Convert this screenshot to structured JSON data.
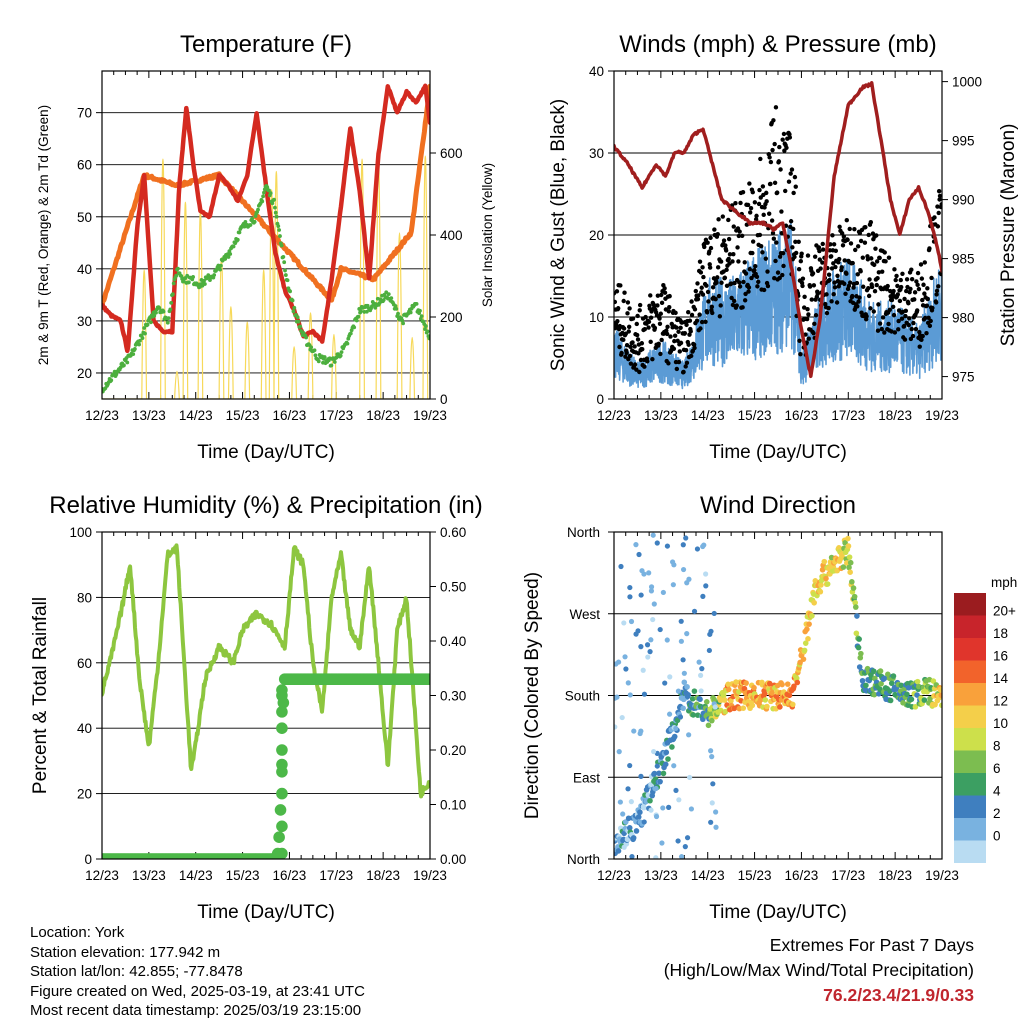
{
  "chart_data": [
    {
      "type": "line",
      "title": "Temperature (F)",
      "xlabel": "Time (Day/UTC)",
      "ylabel": "2m & 9m T (Red, Orange) & 2m Td (Green)",
      "y2label": "Solar Insolation (Yellow)",
      "x_ticks": [
        "12/23",
        "13/23",
        "14/23",
        "15/23",
        "16/23",
        "17/23",
        "18/23",
        "19/23"
      ],
      "ylim": [
        15,
        78
      ],
      "y_ticks": [
        20,
        30,
        40,
        50,
        60,
        70
      ],
      "y2lim": [
        0,
        800
      ],
      "y2_ticks": [
        0,
        200,
        400,
        600
      ],
      "grid": true,
      "x_unit": "day index from 12/23 (0-7)",
      "series": [
        {
          "color": "#d42a20",
          "x": [
            0,
            0.2,
            0.4,
            0.55,
            0.75,
            0.9,
            1.1,
            1.3,
            1.5,
            1.65,
            1.8,
            1.95,
            2.1,
            2.3,
            2.5,
            2.7,
            2.9,
            3.1,
            3.3,
            3.5,
            3.7,
            3.9,
            4.1,
            4.3,
            4.5,
            4.7,
            4.9,
            5.1,
            5.3,
            5.5,
            5.7,
            5.9,
            6.1,
            6.3,
            6.5,
            6.7,
            6.9,
            7.0
          ],
          "values": [
            33,
            31,
            30,
            24,
            48,
            58,
            30,
            28,
            28,
            56,
            71,
            60,
            51,
            50,
            58,
            56,
            53,
            58,
            70,
            56,
            43,
            36,
            32,
            27,
            28,
            26,
            38,
            52,
            67,
            55,
            38,
            62,
            75,
            70,
            74,
            72,
            75,
            68
          ]
        },
        {
          "color": "#f07020",
          "x": [
            0,
            0.9,
            1.6,
            2.5,
            4.9,
            5.1,
            5.8,
            6.6,
            7.0
          ],
          "values": [
            33,
            58,
            56,
            58,
            34,
            40,
            38,
            47,
            75
          ]
        },
        {
          "color": "#4caf3e",
          "x": [
            0,
            0.3,
            0.6,
            0.9,
            1.2,
            1.4,
            1.6,
            1.75,
            1.9,
            2.1,
            2.4,
            2.7,
            3.0,
            3.3,
            3.5,
            3.7,
            3.9,
            4.1,
            4.3,
            4.6,
            4.9,
            5.2,
            5.5,
            5.8,
            6.1,
            6.4,
            6.7,
            7.0
          ],
          "values": [
            17,
            20,
            23,
            28,
            33,
            30,
            40,
            38,
            38,
            37,
            39,
            43,
            48,
            50,
            56,
            52,
            40,
            32,
            27,
            23,
            22,
            25,
            32,
            33,
            35,
            30,
            33,
            27
          ]
        }
      ]
    },
    {
      "type": "scatter",
      "title": "Winds (mph) & Pressure (mb)",
      "xlabel": "Time (Day/UTC)",
      "ylabel": "Sonic Wind & Gust (Blue, Black)",
      "y2label": "Station Pressure (Maroon)",
      "x_ticks": [
        "12/23",
        "13/23",
        "14/23",
        "15/23",
        "16/23",
        "17/23",
        "18/23",
        "19/23"
      ],
      "ylim": [
        0,
        40
      ],
      "y_ticks": [
        0,
        10,
        20,
        30,
        40
      ],
      "y2_ticks": [
        975,
        980,
        985,
        990,
        995,
        1000
      ],
      "grid": true,
      "x_unit": "day index from 12/23 (0-7)",
      "pressure_series": {
        "color": "#a01e1e",
        "x": [
          0,
          0.3,
          0.6,
          0.9,
          1.1,
          1.3,
          1.5,
          1.7,
          1.9,
          2.1,
          2.3,
          2.6,
          2.9,
          3.2,
          3.4,
          3.6,
          3.8,
          4.0,
          4.2,
          4.4,
          4.7,
          5.0,
          5.3,
          5.5,
          5.7,
          5.9,
          6.1,
          6.3,
          6.5,
          6.7,
          6.9,
          7.0
        ],
        "values": [
          994.5,
          993,
          991,
          993,
          992,
          994,
          994,
          995.5,
          996,
          993,
          990,
          989,
          988,
          988,
          987.5,
          988,
          984,
          979,
          975,
          980,
          992,
          998,
          999.5,
          999.8,
          995,
          990,
          987,
          990,
          991,
          989,
          986,
          984
        ]
      },
      "wind_gust_color": "#000000",
      "wind_speed_color": "#5b9bd5",
      "wind_envelope": {
        "x": [
          0,
          0.5,
          1,
          1.5,
          2,
          2.5,
          3,
          3.5,
          3.8,
          4,
          4.5,
          5,
          5.5,
          6,
          6.5,
          7
        ],
        "gust_max": [
          15,
          11,
          15,
          9,
          21,
          24,
          27,
          37,
          32,
          18,
          20,
          22,
          22,
          16,
          16,
          27
        ],
        "wind_mean": [
          6,
          3,
          5,
          3,
          10,
          10,
          12,
          14,
          15,
          4,
          10,
          12,
          8,
          8,
          6,
          12
        ]
      }
    },
    {
      "type": "line",
      "title": "Relative Humidity (%) & Precipitation (in)",
      "xlabel": "Time (Day/UTC)",
      "ylabel": "Percent & Total Rainfall",
      "x_ticks": [
        "12/23",
        "13/23",
        "14/23",
        "15/23",
        "16/23",
        "17/23",
        "18/23",
        "19/23"
      ],
      "ylim": [
        0,
        100
      ],
      "y_ticks": [
        0,
        20,
        40,
        60,
        80,
        100
      ],
      "y2lim": [
        0,
        0.6
      ],
      "y2_ticks": [
        "0.00",
        "0.10",
        "0.20",
        "0.30",
        "0.40",
        "0.50",
        "0.60"
      ],
      "grid": true,
      "x_unit": "day index from 12/23 (0-7)",
      "series": [
        {
          "color": "#8dc63f",
          "x": [
            0,
            0.2,
            0.4,
            0.6,
            0.8,
            1.0,
            1.2,
            1.4,
            1.6,
            1.8,
            1.9,
            2.0,
            2.2,
            2.5,
            2.8,
            3.0,
            3.3,
            3.6,
            3.9,
            4.1,
            4.3,
            4.5,
            4.7,
            4.9,
            5.1,
            5.3,
            5.5,
            5.7,
            5.9,
            6.1,
            6.3,
            6.5,
            6.6,
            6.8,
            7.0
          ],
          "values": [
            51,
            62,
            75,
            90,
            55,
            34,
            60,
            93,
            95,
            50,
            27,
            35,
            55,
            65,
            60,
            70,
            75,
            72,
            65,
            95,
            90,
            60,
            45,
            80,
            93,
            70,
            65,
            90,
            60,
            28,
            70,
            80,
            60,
            20,
            24
          ]
        },
        {
          "color": "#4cb848",
          "label": "precip",
          "x": [
            0,
            3.5,
            3.7,
            3.75,
            3.8,
            3.82,
            3.85,
            3.88,
            4.0,
            7.0
          ],
          "values": [
            0,
            0,
            0,
            0.01,
            0.06,
            0.12,
            0.2,
            0.33,
            0.33,
            0.33
          ]
        }
      ]
    },
    {
      "type": "scatter",
      "title": "Wind Direction",
      "xlabel": "Time (Day/UTC)",
      "ylabel": "Direction (Colored By Speed)",
      "x_ticks": [
        "12/23",
        "13/23",
        "14/23",
        "15/23",
        "16/23",
        "17/23",
        "18/23",
        "19/23"
      ],
      "y_ticks": [
        "North",
        "East",
        "South",
        "West",
        "North"
      ],
      "grid": true,
      "x_unit": "day index from 12/23 (0-7)",
      "colorbar": {
        "title": "mph",
        "labels": [
          "20+",
          "18",
          "16",
          "14",
          "12",
          "10",
          "8",
          "6",
          "4",
          "2",
          "0"
        ],
        "colors": [
          "#9b1c1f",
          "#c8242b",
          "#e0352c",
          "#f2632b",
          "#f9a13b",
          "#f4cf4a",
          "#cde04b",
          "#7cbd50",
          "#3c9f62",
          "#3f7fbf",
          "#79b2e0",
          "#b9dcf2"
        ]
      },
      "direction_envelope": {
        "x": [
          0,
          0.5,
          1.0,
          1.5,
          2.0,
          2.5,
          3.0,
          3.5,
          3.8,
          4.0,
          4.3,
          4.6,
          5.0,
          5.3,
          5.8,
          6.3,
          6.7,
          7.0
        ],
        "direction_deg": [
          20,
          40,
          100,
          180,
          160,
          180,
          180,
          180,
          180,
          220,
          300,
          320,
          340,
          200,
          190,
          180,
          185,
          175
        ],
        "speed": [
          3,
          2,
          4,
          4,
          6,
          14,
          13,
          14,
          14,
          12,
          12,
          12,
          10,
          6,
          6,
          6,
          8,
          12
        ]
      }
    }
  ],
  "footer": {
    "location": "Location: York",
    "elevation": "Station elevation: 177.942 m",
    "latlon": "Station lat/lon: 42.855; -77.8478",
    "created": "Figure created on Wed, 2025-03-19, at 23:41 UTC",
    "recent": "Most recent data timestamp: 2025/03/19 23:15:00",
    "extremes_title": "Extremes For Past 7 Days",
    "extremes_sub": "(High/Low/Max Wind/Total Precipitation)",
    "extremes_values": "76.2/23.4/21.9/0.33"
  }
}
